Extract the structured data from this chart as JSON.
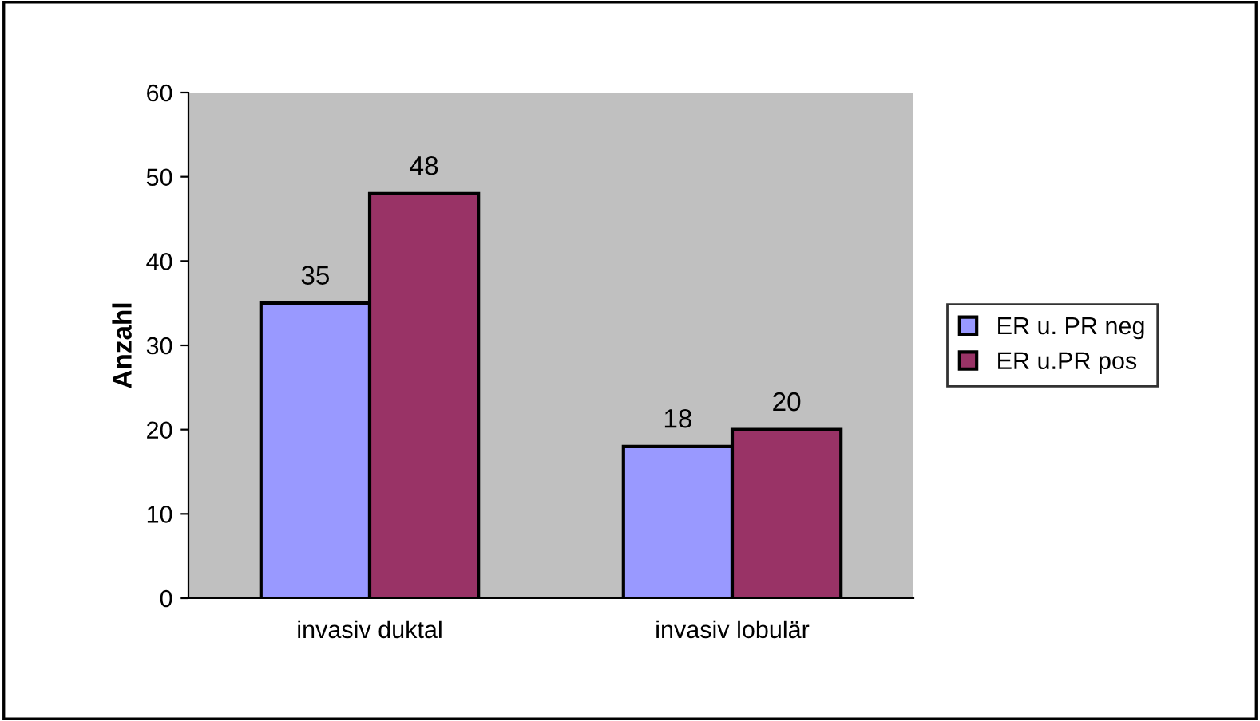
{
  "chart_data": {
    "type": "bar",
    "ylabel": "Anzahl",
    "categories": [
      "invasiv duktal",
      "invasiv lobulär"
    ],
    "series": [
      {
        "name": "ER u. PR neg",
        "color": "#9999ff",
        "values": [
          35,
          18
        ]
      },
      {
        "name": "ER u.PR pos",
        "color": "#993366",
        "values": [
          48,
          20
        ]
      }
    ],
    "ylim": [
      0,
      60
    ],
    "yticks": [
      0,
      10,
      20,
      30,
      40,
      50,
      60
    ],
    "grid": false,
    "legend": "right",
    "data_labels": true
  }
}
